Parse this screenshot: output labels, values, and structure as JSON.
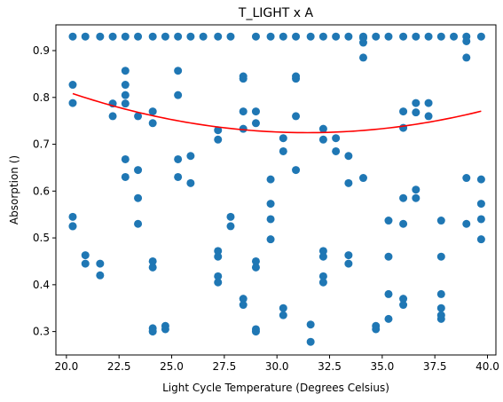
{
  "chart_data": {
    "type": "scatter",
    "title": "T_LIGHT x A",
    "xlabel": "Light Cycle Temperature (Degrees Celsius)",
    "ylabel": "Absorption ()",
    "xlim": [
      19.5,
      40.4
    ],
    "ylim": [
      0.25,
      0.955
    ],
    "xticks": [
      20.0,
      22.5,
      25.0,
      27.5,
      30.0,
      32.5,
      35.0,
      37.5,
      40.0
    ],
    "xtick_labels": [
      "20.0",
      "22.5",
      "25.0",
      "27.5",
      "30.0",
      "32.5",
      "35.0",
      "37.5",
      "40.0"
    ],
    "yticks": [
      0.3,
      0.4,
      0.5,
      0.6,
      0.7,
      0.8,
      0.9
    ],
    "ytick_labels": [
      "0.3",
      "0.4",
      "0.5",
      "0.6",
      "0.7",
      "0.8",
      "0.9"
    ],
    "grid": false,
    "point_color": "#1f77b4",
    "trend_color": "#ff0000",
    "trend": {
      "type": "quadratic",
      "x": [
        20.3,
        22.0,
        24.0,
        26.0,
        28.0,
        30.0,
        31.5,
        33.0,
        35.0,
        37.0,
        39.7
      ],
      "y": [
        0.811,
        0.784,
        0.76,
        0.743,
        0.731,
        0.726,
        0.726,
        0.728,
        0.735,
        0.747,
        0.768
      ]
    },
    "series": [
      {
        "x": [
          20.3,
          20.9,
          21.6,
          22.2,
          22.8,
          23.4,
          24.1,
          24.7,
          25.3,
          25.9,
          26.5,
          27.2,
          27.8,
          29.0,
          29.7,
          30.3,
          30.9,
          31.6,
          32.2,
          32.8,
          33.4,
          34.1,
          34.7,
          35.3,
          36.0,
          36.6,
          37.2,
          37.8,
          38.4,
          39.0,
          39.7,
          20.3,
          20.3,
          20.3,
          20.3,
          20.3,
          20.9,
          20.9,
          21.6,
          21.6,
          22.2,
          22.2,
          22.8,
          22.8,
          22.8,
          22.8,
          22.8,
          22.8,
          23.4,
          23.4,
          23.4,
          23.4,
          24.1,
          24.1,
          24.1,
          24.1,
          24.1,
          24.1,
          24.7,
          24.7,
          25.3,
          25.3,
          25.3,
          25.3,
          25.9,
          25.9,
          27.2,
          27.2,
          27.2,
          27.2,
          27.2,
          27.2,
          27.8,
          27.8,
          28.4,
          28.4,
          28.4,
          28.4,
          28.4,
          28.4,
          29.0,
          29.0,
          29.0,
          29.0,
          29.0,
          29.0,
          29.7,
          29.7,
          29.7,
          29.7,
          30.3,
          30.3,
          30.3,
          30.3,
          30.9,
          30.9,
          30.9,
          30.9,
          31.6,
          31.6,
          32.2,
          32.2,
          32.2,
          32.2,
          32.2,
          32.2,
          32.8,
          32.8,
          33.4,
          33.4,
          33.4,
          33.4,
          34.1,
          34.1,
          34.1,
          34.1,
          34.7,
          34.7,
          35.3,
          35.3,
          35.3,
          35.3,
          36.0,
          36.0,
          36.0,
          36.0,
          36.0,
          36.0,
          36.6,
          36.6,
          36.6,
          36.6,
          37.2,
          37.2,
          37.8,
          37.8,
          37.8,
          37.8,
          37.8,
          37.8,
          39.0,
          39.0,
          39.0,
          39.0,
          39.7,
          39.7,
          39.7,
          39.7
        ],
        "y": [
          0.93,
          0.93,
          0.93,
          0.93,
          0.93,
          0.93,
          0.93,
          0.93,
          0.93,
          0.93,
          0.93,
          0.93,
          0.93,
          0.93,
          0.93,
          0.93,
          0.93,
          0.93,
          0.93,
          0.93,
          0.93,
          0.93,
          0.93,
          0.93,
          0.93,
          0.93,
          0.93,
          0.93,
          0.93,
          0.93,
          0.93,
          0.827,
          0.788,
          0.545,
          0.525,
          0.525,
          0.463,
          0.445,
          0.445,
          0.42,
          0.787,
          0.76,
          0.857,
          0.827,
          0.805,
          0.787,
          0.668,
          0.63,
          0.76,
          0.645,
          0.585,
          0.53,
          0.77,
          0.745,
          0.45,
          0.437,
          0.307,
          0.3,
          0.312,
          0.305,
          0.857,
          0.805,
          0.668,
          0.63,
          0.675,
          0.617,
          0.73,
          0.71,
          0.472,
          0.46,
          0.418,
          0.405,
          0.545,
          0.525,
          0.845,
          0.84,
          0.77,
          0.733,
          0.37,
          0.357,
          0.77,
          0.745,
          0.45,
          0.437,
          0.305,
          0.3,
          0.625,
          0.573,
          0.54,
          0.497,
          0.713,
          0.685,
          0.35,
          0.335,
          0.845,
          0.84,
          0.76,
          0.645,
          0.315,
          0.278,
          0.733,
          0.71,
          0.472,
          0.46,
          0.418,
          0.405,
          0.713,
          0.685,
          0.675,
          0.617,
          0.463,
          0.445,
          0.927,
          0.917,
          0.885,
          0.628,
          0.312,
          0.305,
          0.537,
          0.46,
          0.38,
          0.327,
          0.77,
          0.735,
          0.585,
          0.53,
          0.37,
          0.357,
          0.788,
          0.768,
          0.603,
          0.585,
          0.788,
          0.76,
          0.537,
          0.46,
          0.38,
          0.35,
          0.335,
          0.327,
          0.92,
          0.885,
          0.628,
          0.53,
          0.625,
          0.573,
          0.54,
          0.497
        ]
      }
    ]
  }
}
